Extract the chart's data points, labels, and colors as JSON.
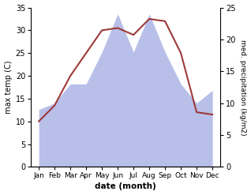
{
  "months": [
    "Jan",
    "Feb",
    "Mar",
    "Apr",
    "May",
    "Jun",
    "Jul",
    "Aug",
    "Sep",
    "Oct",
    "Nov",
    "Dec"
  ],
  "temp": [
    10,
    13.5,
    20,
    25,
    30,
    30.5,
    29,
    32.5,
    32,
    25,
    12,
    11.5
  ],
  "precip": [
    9,
    10,
    13,
    13,
    18,
    24,
    18,
    24,
    18,
    13,
    10,
    12
  ],
  "temp_color": "#9e3a3a",
  "precip_color_fill": "#b8bfe8",
  "temp_ylim": [
    0,
    35
  ],
  "precip_ylim": [
    0,
    25
  ],
  "temp_yticks": [
    0,
    5,
    10,
    15,
    20,
    25,
    30,
    35
  ],
  "precip_yticks": [
    0,
    5,
    10,
    15,
    20,
    25
  ],
  "xlabel": "date (month)",
  "ylabel_left": "max temp (C)",
  "ylabel_right": "med. precipitation (kg/m2)",
  "bg_color": "#ffffff",
  "temp_scale": 35,
  "precip_scale": 25
}
